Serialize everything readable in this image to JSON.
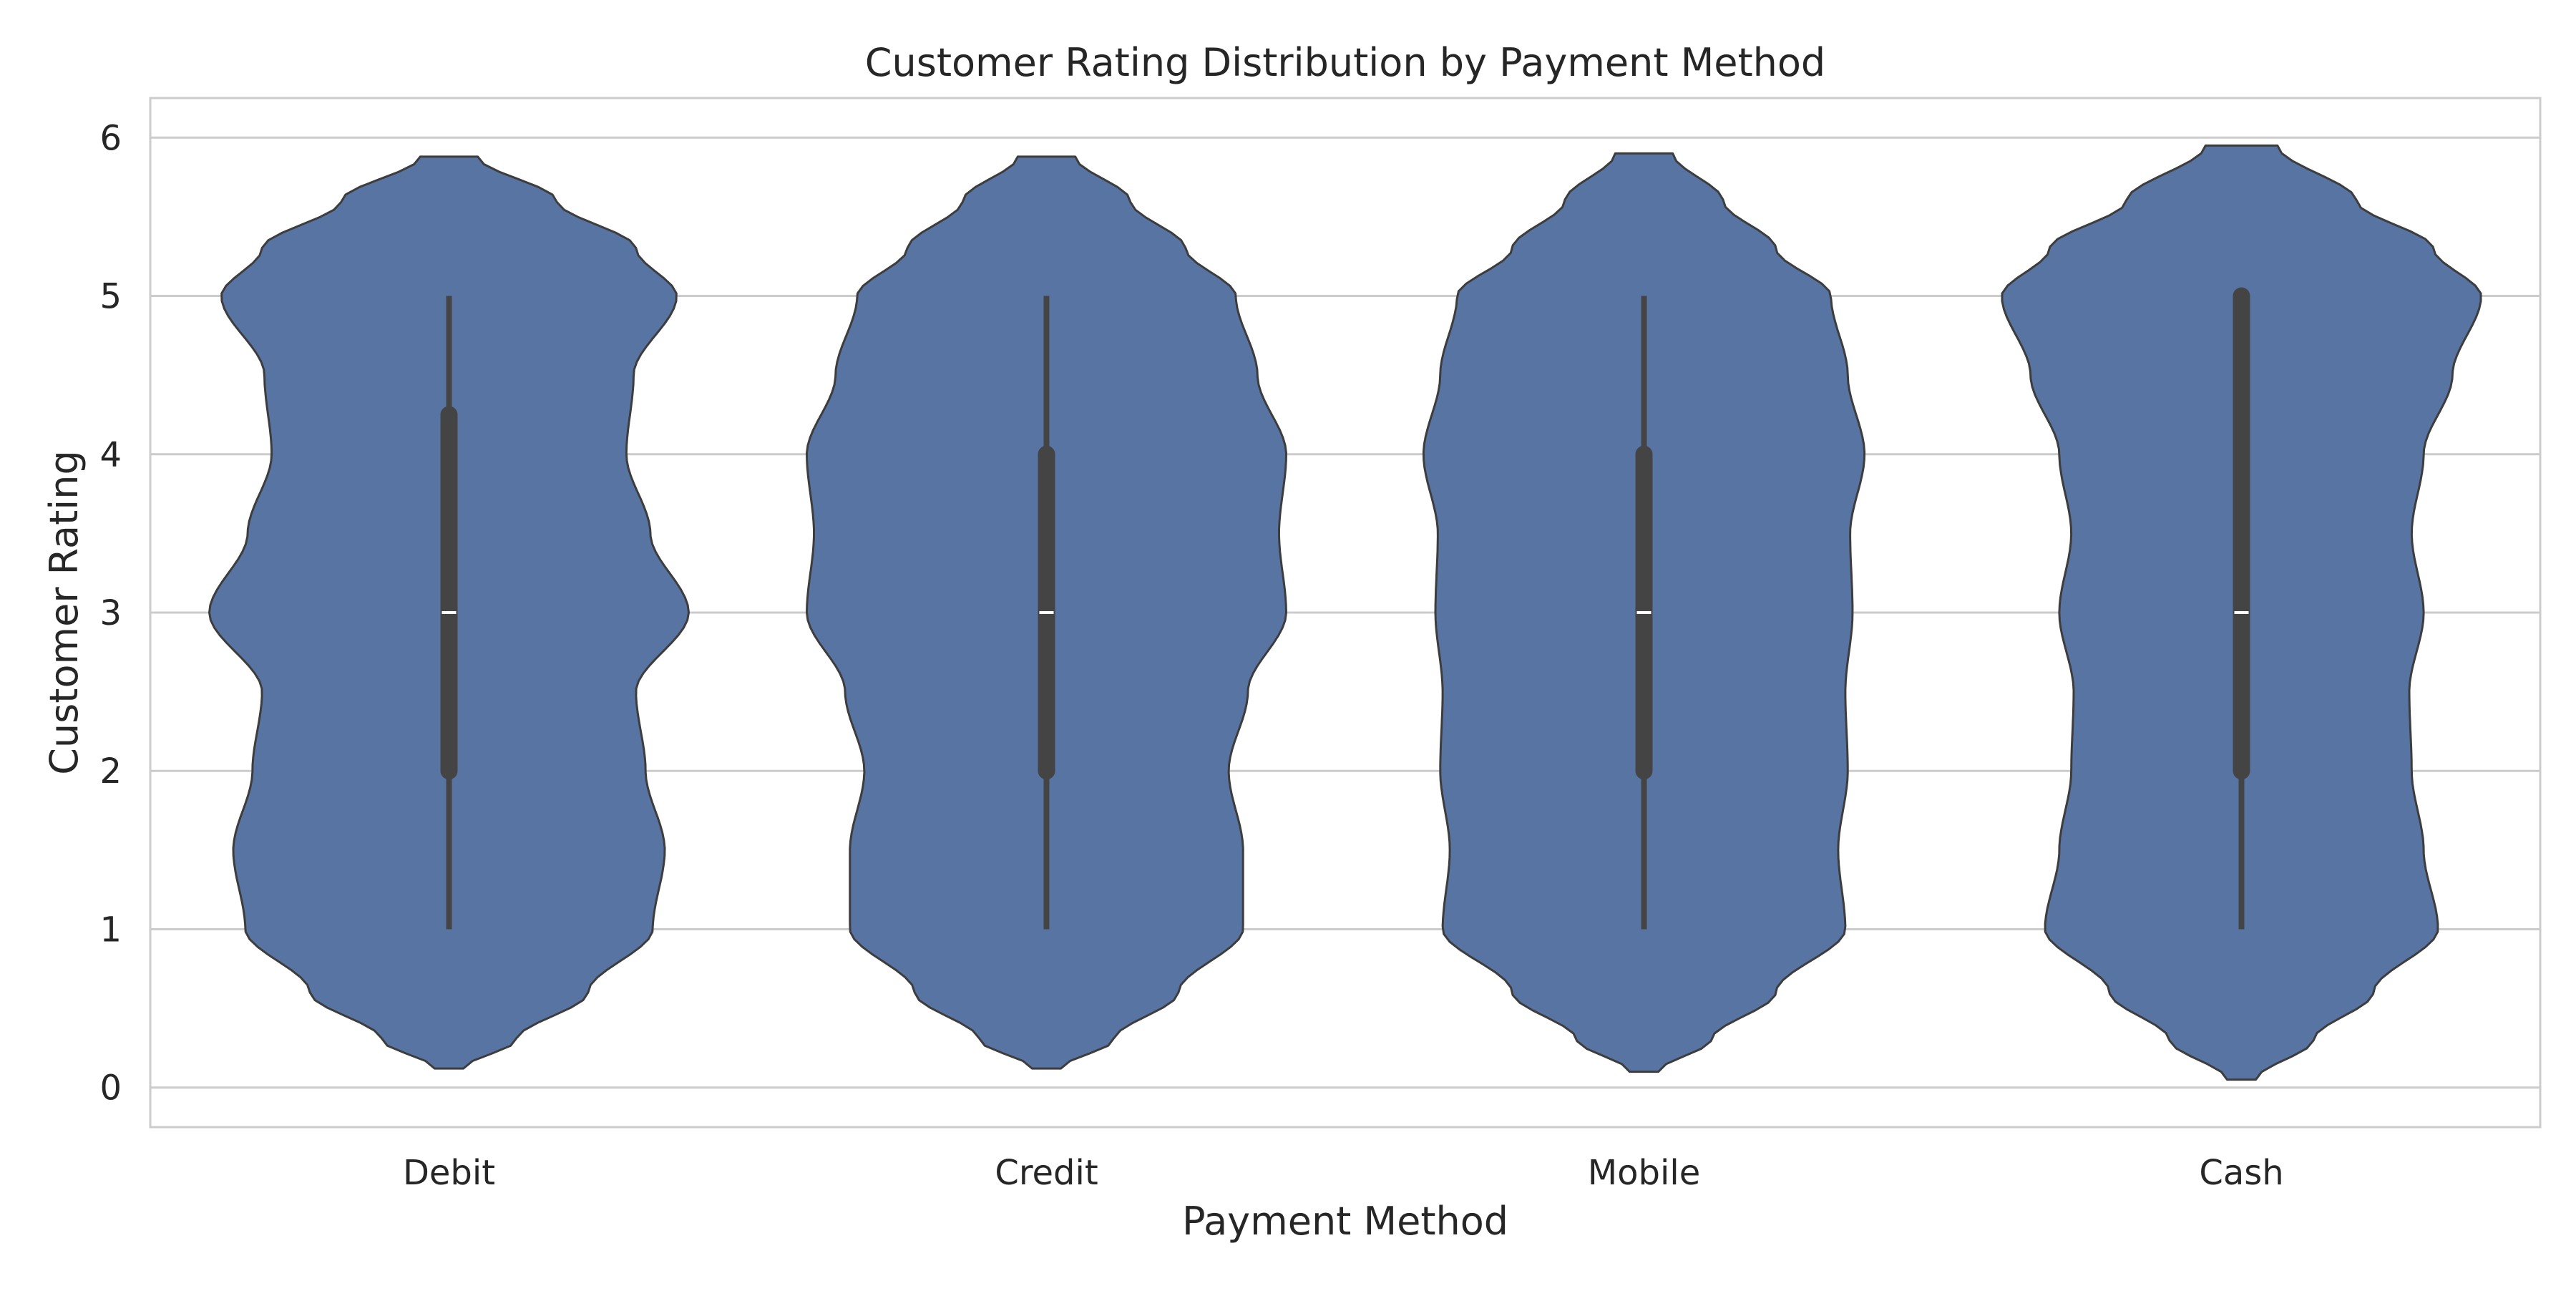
{
  "chart_data": {
    "type": "violin",
    "title": "Customer Rating Distribution by Payment Method",
    "xlabel": "Payment Method",
    "ylabel": "Customer Rating",
    "ylim": [
      -0.25,
      6.25
    ],
    "yticks": [
      0,
      1,
      2,
      3,
      4,
      5,
      6
    ],
    "grid": "horizontal",
    "categories": [
      "Debit",
      "Credit",
      "Mobile",
      "Cash"
    ],
    "colors": {
      "violin_fill": "#5874a3",
      "violin_stroke": "#3d3d3d",
      "box": "#444444",
      "median": "#ffffff",
      "grid": "#cccccc",
      "frame": "#cccccc"
    },
    "series": [
      {
        "category": "Debit",
        "min": 1,
        "q1": 2,
        "median": 3,
        "q3": 4.25,
        "max": 5,
        "kde_min": 0.12,
        "kde_max": 5.88,
        "density_profile": [
          [
            0.12,
            0.06
          ],
          [
            0.3,
            0.28
          ],
          [
            0.6,
            0.58
          ],
          [
            1.0,
            0.85
          ],
          [
            1.5,
            0.9
          ],
          [
            2.0,
            0.82
          ],
          [
            2.5,
            0.78
          ],
          [
            3.0,
            1.0
          ],
          [
            3.5,
            0.84
          ],
          [
            4.0,
            0.74
          ],
          [
            4.5,
            0.77
          ],
          [
            5.0,
            0.95
          ],
          [
            5.3,
            0.78
          ],
          [
            5.6,
            0.45
          ],
          [
            5.88,
            0.12
          ]
        ]
      },
      {
        "category": "Credit",
        "min": 1,
        "q1": 2,
        "median": 3,
        "q3": 4,
        "max": 5,
        "kde_min": 0.12,
        "kde_max": 5.88,
        "density_profile": [
          [
            0.12,
            0.06
          ],
          [
            0.3,
            0.28
          ],
          [
            0.6,
            0.55
          ],
          [
            1.0,
            0.82
          ],
          [
            1.5,
            0.82
          ],
          [
            2.0,
            0.76
          ],
          [
            2.5,
            0.84
          ],
          [
            3.0,
            1.0
          ],
          [
            3.5,
            0.97
          ],
          [
            4.0,
            1.0
          ],
          [
            4.5,
            0.88
          ],
          [
            5.0,
            0.79
          ],
          [
            5.3,
            0.58
          ],
          [
            5.6,
            0.35
          ],
          [
            5.88,
            0.12
          ]
        ]
      },
      {
        "category": "Mobile",
        "min": 1,
        "q1": 2,
        "median": 3,
        "q3": 4,
        "max": 5,
        "kde_min": 0.1,
        "kde_max": 5.9,
        "density_profile": [
          [
            0.1,
            0.06
          ],
          [
            0.3,
            0.28
          ],
          [
            0.6,
            0.55
          ],
          [
            1.0,
            0.84
          ],
          [
            1.5,
            0.81
          ],
          [
            2.0,
            0.85
          ],
          [
            2.5,
            0.84
          ],
          [
            3.0,
            0.87
          ],
          [
            3.5,
            0.86
          ],
          [
            4.0,
            0.92
          ],
          [
            4.5,
            0.85
          ],
          [
            5.0,
            0.78
          ],
          [
            5.3,
            0.55
          ],
          [
            5.6,
            0.33
          ],
          [
            5.9,
            0.12
          ]
        ]
      },
      {
        "category": "Cash",
        "min": 1,
        "q1": 2,
        "median": 3,
        "q3": 5,
        "max": 5,
        "kde_min": 0.05,
        "kde_max": 5.95,
        "density_profile": [
          [
            0.05,
            0.06
          ],
          [
            0.3,
            0.3
          ],
          [
            0.6,
            0.55
          ],
          [
            1.0,
            0.82
          ],
          [
            1.5,
            0.76
          ],
          [
            2.0,
            0.71
          ],
          [
            2.5,
            0.7
          ],
          [
            3.0,
            0.76
          ],
          [
            3.5,
            0.71
          ],
          [
            4.0,
            0.76
          ],
          [
            4.5,
            0.88
          ],
          [
            5.0,
            1.0
          ],
          [
            5.3,
            0.8
          ],
          [
            5.6,
            0.48
          ],
          [
            5.95,
            0.15
          ]
        ]
      }
    ]
  }
}
